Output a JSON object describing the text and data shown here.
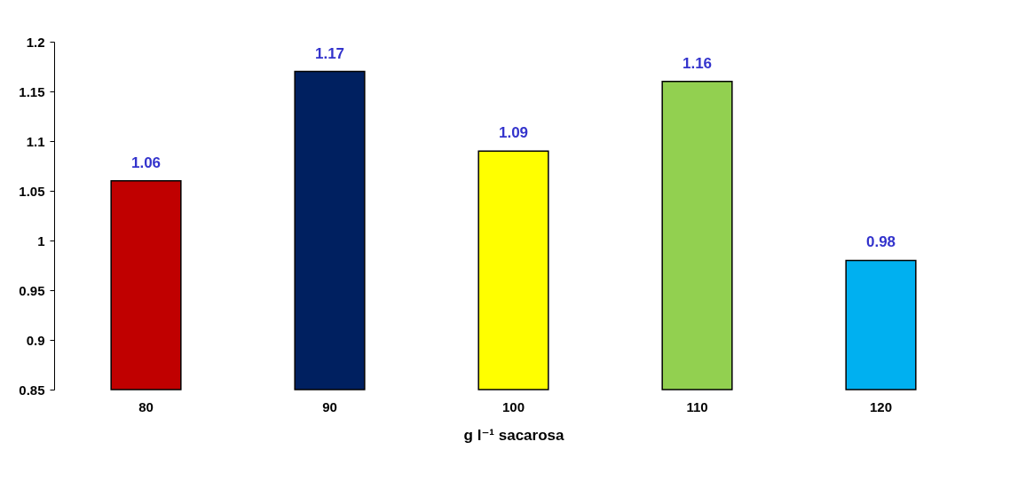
{
  "chart_data": {
    "type": "bar",
    "xlabel": "g l⁻¹ sacarosa",
    "categories": [
      "80",
      "90",
      "100",
      "110",
      "120"
    ],
    "values": [
      1.06,
      1.17,
      1.09,
      1.16,
      0.98
    ],
    "colors": [
      "#c00000",
      "#002060",
      "#ffff00",
      "#92d050",
      "#00b0f0"
    ],
    "ylim": [
      0.85,
      1.2
    ],
    "yticks": [
      0.85,
      0.9,
      0.95,
      1,
      1.05,
      1.1,
      1.15,
      1.2
    ],
    "grid": false,
    "data_labels": true
  }
}
